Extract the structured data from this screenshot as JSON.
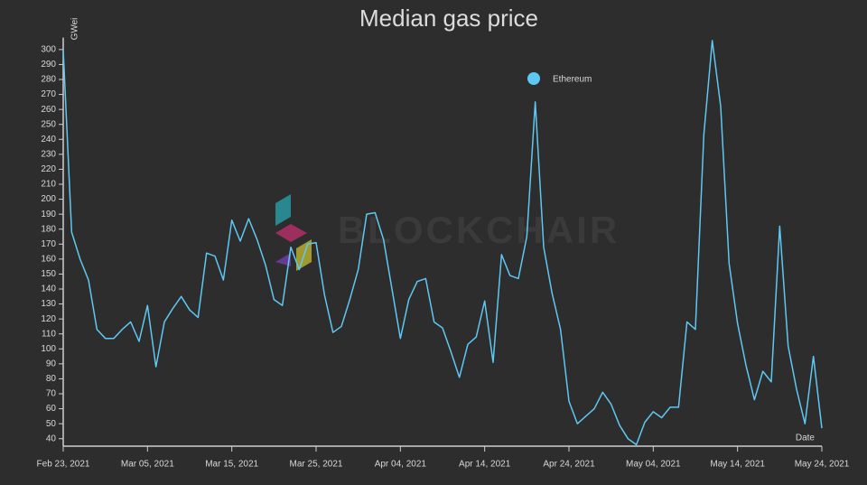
{
  "chart_data": {
    "type": "line",
    "title": "Median gas price",
    "y_label": "GWei",
    "x_label": "Date",
    "watermark": "BLOCKCHAIR",
    "legend": "top-right",
    "x": [
      "2021-02-23",
      "2021-02-24",
      "2021-02-25",
      "2021-02-26",
      "2021-02-27",
      "2021-02-28",
      "2021-03-01",
      "2021-03-02",
      "2021-03-03",
      "2021-03-04",
      "2021-03-05",
      "2021-03-06",
      "2021-03-07",
      "2021-03-08",
      "2021-03-09",
      "2021-03-10",
      "2021-03-11",
      "2021-03-12",
      "2021-03-13",
      "2021-03-14",
      "2021-03-15",
      "2021-03-16",
      "2021-03-17",
      "2021-03-18",
      "2021-03-19",
      "2021-03-20",
      "2021-03-21",
      "2021-03-22",
      "2021-03-23",
      "2021-03-24",
      "2021-03-25",
      "2021-03-26",
      "2021-03-27",
      "2021-03-28",
      "2021-03-29",
      "2021-03-30",
      "2021-03-31",
      "2021-04-01",
      "2021-04-02",
      "2021-04-03",
      "2021-04-04",
      "2021-04-05",
      "2021-04-06",
      "2021-04-07",
      "2021-04-08",
      "2021-04-09",
      "2021-04-10",
      "2021-04-11",
      "2021-04-12",
      "2021-04-13",
      "2021-04-14",
      "2021-04-15",
      "2021-04-16",
      "2021-04-17",
      "2021-04-18",
      "2021-04-19",
      "2021-04-20",
      "2021-04-21",
      "2021-04-22",
      "2021-04-23",
      "2021-04-24",
      "2021-04-25",
      "2021-04-26",
      "2021-04-27",
      "2021-04-28",
      "2021-04-29",
      "2021-04-30",
      "2021-05-01",
      "2021-05-02",
      "2021-05-03",
      "2021-05-04",
      "2021-05-05",
      "2021-05-06",
      "2021-05-07",
      "2021-05-08",
      "2021-05-09",
      "2021-05-10",
      "2021-05-11",
      "2021-05-12",
      "2021-05-13",
      "2021-05-14",
      "2021-05-15",
      "2021-05-16",
      "2021-05-17",
      "2021-05-18",
      "2021-05-19",
      "2021-05-20",
      "2021-05-21",
      "2021-05-22",
      "2021-05-23",
      "2021-05-24"
    ],
    "series": [
      {
        "name": "Ethereum",
        "color": "#5ec8f2",
        "values": [
          300,
          178,
          160,
          146,
          113,
          107,
          107,
          113,
          118,
          105,
          129,
          88,
          118,
          127,
          135,
          126,
          121,
          164,
          162,
          146,
          186,
          172,
          187,
          173,
          156,
          133,
          129,
          168,
          153,
          170,
          171,
          136,
          111,
          115,
          133,
          153,
          190,
          191,
          173,
          140,
          107,
          133,
          145,
          147,
          118,
          114,
          98,
          81,
          103,
          108,
          132,
          91,
          163,
          149,
          147,
          175,
          265,
          168,
          137,
          113,
          65,
          50,
          55,
          60,
          71,
          63,
          49,
          40,
          36,
          51,
          58,
          54,
          61,
          61,
          118,
          113,
          243,
          306,
          262,
          157,
          117,
          89,
          66,
          85,
          78,
          182,
          102,
          73,
          50,
          95,
          47
        ]
      }
    ],
    "xlim": [
      "2021-02-23",
      "2021-05-24"
    ],
    "xticks": [
      {
        "value": "2021-02-23",
        "label": "Feb 23, 2021"
      },
      {
        "value": "2021-03-05",
        "label": "Mar 05, 2021"
      },
      {
        "value": "2021-03-15",
        "label": "Mar 15, 2021"
      },
      {
        "value": "2021-03-25",
        "label": "Mar 25, 2021"
      },
      {
        "value": "2021-04-04",
        "label": "Apr 04, 2021"
      },
      {
        "value": "2021-04-14",
        "label": "Apr 14, 2021"
      },
      {
        "value": "2021-04-24",
        "label": "Apr 24, 2021"
      },
      {
        "value": "2021-05-04",
        "label": "May 04, 2021"
      },
      {
        "value": "2021-05-14",
        "label": "May 14, 2021"
      },
      {
        "value": "2021-05-24",
        "label": "May 24, 2021"
      }
    ],
    "ylim": [
      35,
      308
    ],
    "yticks": [
      40,
      50,
      60,
      70,
      80,
      90,
      100,
      110,
      120,
      130,
      140,
      150,
      160,
      170,
      180,
      190,
      200,
      210,
      220,
      230,
      240,
      250,
      260,
      270,
      280,
      290,
      300
    ],
    "grid": false
  }
}
